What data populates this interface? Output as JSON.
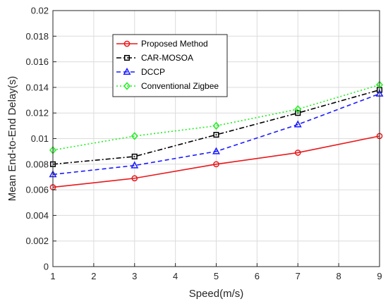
{
  "chart_data": {
    "type": "line",
    "xlabel": "Speed(m/s)",
    "ylabel": "Mean End-to-End Delay(s)",
    "x": [
      1,
      3,
      5,
      7,
      9
    ],
    "xlim": [
      1,
      9
    ],
    "ylim": [
      0,
      0.02
    ],
    "xticks": [
      1,
      2,
      3,
      4,
      5,
      6,
      7,
      8,
      9
    ],
    "yticks": [
      0,
      0.002,
      0.004,
      0.006,
      0.008,
      0.01,
      0.012,
      0.014,
      0.016,
      0.018,
      0.02
    ],
    "ytick_labels": [
      "0",
      "0.002",
      "0.004",
      "0.006",
      "0.008",
      "0.01",
      "0.012",
      "0.014",
      "0.016",
      "0.018",
      "0.02"
    ],
    "grid": true,
    "legend_position": "top-left",
    "series": [
      {
        "name": "Proposed Method",
        "values": [
          0.0062,
          0.0069,
          0.008,
          0.0089,
          0.0102
        ],
        "color": "#e8191c",
        "marker": "circle",
        "dash": "solid"
      },
      {
        "name": "CAR-MOSOA",
        "values": [
          0.008,
          0.0086,
          0.0103,
          0.012,
          0.0138
        ],
        "color": "#000000",
        "marker": "square",
        "dash": "dashdot"
      },
      {
        "name": "DCCP",
        "values": [
          0.0072,
          0.0079,
          0.009,
          0.0111,
          0.0135
        ],
        "color": "#1a1aff",
        "marker": "triangle",
        "dash": "dashed"
      },
      {
        "name": "Conventional Zigbee",
        "values": [
          0.0091,
          0.0102,
          0.011,
          0.0123,
          0.0142
        ],
        "color": "#22ee22",
        "marker": "diamond",
        "dash": "dotted"
      }
    ]
  }
}
